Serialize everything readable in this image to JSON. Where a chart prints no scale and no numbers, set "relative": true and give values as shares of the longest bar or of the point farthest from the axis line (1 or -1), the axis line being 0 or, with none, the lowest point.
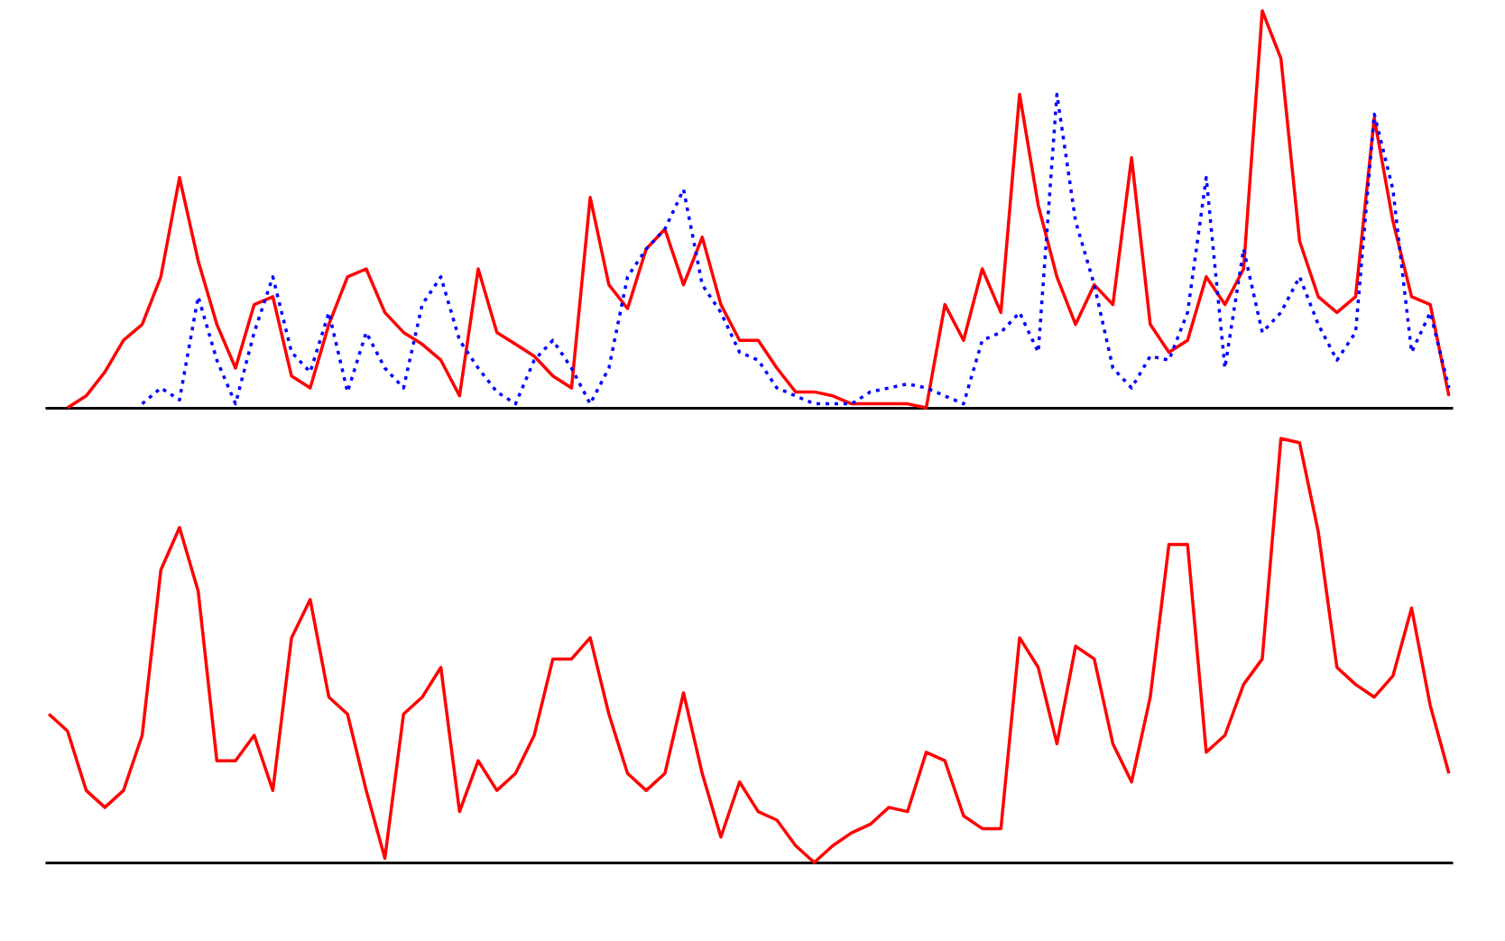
{
  "chart_data": [
    {
      "type": "line",
      "relative": true,
      "categories": [
        null,
        null,
        null,
        null,
        null,
        null,
        null,
        null,
        null,
        null,
        null,
        null,
        null,
        null,
        null,
        null,
        null,
        null,
        null,
        null,
        null,
        null,
        null,
        null,
        null,
        null,
        null,
        null,
        null,
        null,
        null,
        null,
        null,
        null,
        null,
        null,
        null,
        null,
        null,
        null,
        null,
        null,
        null,
        null,
        null,
        null,
        null,
        null,
        null,
        null,
        null,
        null,
        null,
        null,
        null,
        null,
        null,
        null,
        null,
        null,
        null,
        null,
        null,
        null,
        null,
        null,
        null,
        null,
        null,
        null,
        null,
        null,
        null,
        null,
        null,
        null
      ],
      "series": [
        {
          "color": "#ff0000",
          "line_style": "solid",
          "values": [
            null,
            0,
            0.03,
            0.09,
            0.17,
            0.21,
            0.33,
            0.58,
            0.37,
            0.21,
            0.1,
            0.26,
            0.28,
            0.08,
            0.05,
            0.21,
            0.33,
            0.35,
            0.24,
            0.19,
            0.16,
            0.12,
            0.03,
            0.35,
            0.19,
            0.16,
            0.13,
            0.08,
            0.05,
            0.53,
            0.31,
            0.25,
            0.4,
            0.45,
            0.31,
            0.43,
            0.26,
            0.17,
            0.17,
            0.1,
            0.04,
            0.04,
            0.03,
            0.01,
            0.01,
            0.01,
            0.01,
            0,
            0.26,
            0.17,
            0.35,
            0.24,
            0.79,
            0.51,
            0.33,
            0.21,
            0.31,
            0.26,
            0.63,
            0.21,
            0.14,
            0.17,
            0.33,
            0.26,
            0.35,
            1,
            0.88,
            0.42,
            0.28,
            0.24,
            0.28,
            0.73,
            0.47,
            0.28,
            0.26,
            0.03
          ]
        },
        {
          "color": "#0000ff",
          "line_style": "dotted",
          "values": [
            null,
            null,
            null,
            null,
            null,
            0.01,
            0.05,
            0.02,
            0.28,
            0.12,
            0.01,
            0.19,
            0.33,
            0.14,
            0.09,
            0.24,
            0.04,
            0.19,
            0.1,
            0.05,
            0.26,
            0.33,
            0.17,
            0.1,
            0.04,
            0.01,
            0.12,
            0.17,
            0.1,
            0.01,
            0.1,
            0.33,
            0.4,
            0.45,
            0.55,
            0.31,
            0.24,
            0.14,
            0.12,
            0.05,
            0.03,
            0.01,
            0.01,
            0.01,
            0.04,
            0.05,
            0.06,
            0.05,
            0.03,
            0.01,
            0.17,
            0.19,
            0.24,
            0.14,
            0.79,
            0.47,
            0.31,
            0.1,
            0.05,
            0.13,
            0.12,
            0.24,
            0.58,
            0.1,
            0.4,
            0.19,
            0.24,
            0.33,
            0.21,
            0.12,
            0.19,
            0.74,
            0.55,
            0.14,
            0.24,
            0.05
          ]
        }
      ]
    },
    {
      "type": "line",
      "relative": true,
      "categories": [
        null,
        null,
        null,
        null,
        null,
        null,
        null,
        null,
        null,
        null,
        null,
        null,
        null,
        null,
        null,
        null,
        null,
        null,
        null,
        null,
        null,
        null,
        null,
        null,
        null,
        null,
        null,
        null,
        null,
        null,
        null,
        null,
        null,
        null,
        null,
        null,
        null,
        null,
        null,
        null,
        null,
        null,
        null,
        null,
        null,
        null,
        null,
        null,
        null,
        null,
        null,
        null,
        null,
        null,
        null,
        null,
        null,
        null,
        null,
        null,
        null,
        null,
        null,
        null,
        null,
        null,
        null,
        null,
        null,
        null,
        null,
        null,
        null,
        null,
        null,
        null
      ],
      "series": [
        {
          "color": "#ff0000",
          "line_style": "solid",
          "values": [
            0.35,
            0.31,
            0.17,
            0.13,
            0.17,
            0.3,
            0.69,
            0.79,
            0.64,
            0.24,
            0.24,
            0.3,
            0.17,
            0.53,
            0.62,
            0.39,
            0.35,
            0.17,
            0.01,
            0.35,
            0.39,
            0.46,
            0.12,
            0.24,
            0.17,
            0.21,
            0.3,
            0.48,
            0.48,
            0.53,
            0.35,
            0.21,
            0.17,
            0.21,
            0.4,
            0.21,
            0.06,
            0.19,
            0.12,
            0.1,
            0.04,
            0,
            0.04,
            0.07,
            0.09,
            0.13,
            0.12,
            0.26,
            0.24,
            0.11,
            0.08,
            0.08,
            0.53,
            0.46,
            0.28,
            0.51,
            0.48,
            0.28,
            0.19,
            0.39,
            0.75,
            0.75,
            0.26,
            0.3,
            0.42,
            0.48,
            1,
            0.99,
            0.78,
            0.46,
            0.42,
            0.39,
            0.44,
            0.6,
            0.37,
            0.21
          ]
        }
      ]
    }
  ]
}
